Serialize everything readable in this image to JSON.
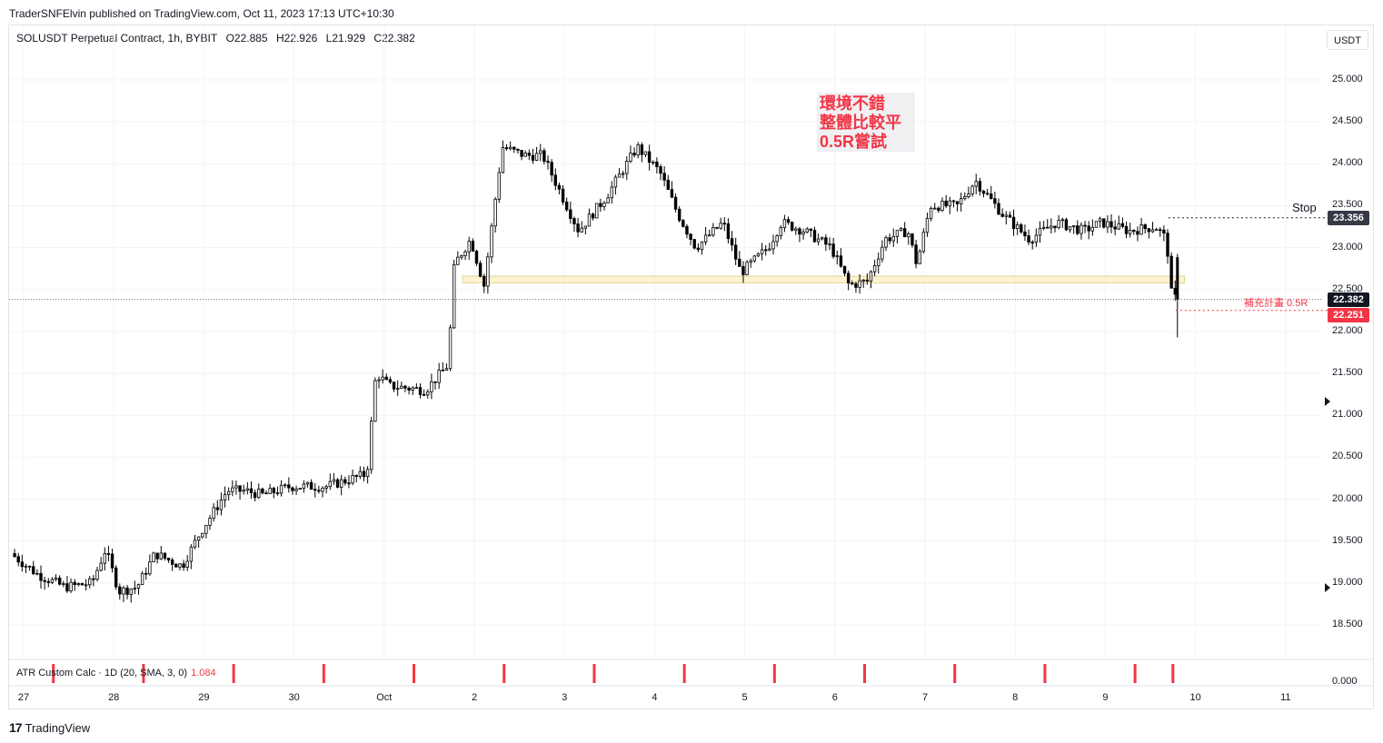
{
  "header": {
    "published": "TraderSNFElvin published on TradingView.com, Oct 11, 2023 17:13 UTC+10:30"
  },
  "symbol": {
    "name": "SOLUSDT Perpetual Contract, 1h, BYBIT",
    "open": "O22.885",
    "high": "H22.926",
    "low": "L21.929",
    "close": "C22.382"
  },
  "currency_button": "USDT",
  "annotation": {
    "lines": [
      "環境不錯",
      "整體比較平",
      "0.5R嘗試"
    ],
    "color": "#f23645"
  },
  "levels": {
    "stop_label": "Stop",
    "stop_price": "23.356",
    "close_price": "22.382",
    "plan_label": "補充計畫 0.5R",
    "plan_price": "22.251"
  },
  "indicator": {
    "label": "ATR Custom Calc · 1D (20, SMA, 3, 0)",
    "value": "1.084",
    "axis_value": "0.000"
  },
  "footer": {
    "brand": "TradingView"
  },
  "colors": {
    "up": "#ffffff",
    "down": "#000000",
    "accent_red": "#f23645",
    "zone": "#fdf3cf"
  },
  "chart_data": {
    "type": "candlestick",
    "title": "SOLUSDT Perpetual Contract, 1h, BYBIT",
    "ylim": [
      18.2,
      25.4
    ],
    "y_ticks": [
      "25.000",
      "24.500",
      "24.000",
      "23.500",
      "23.000",
      "22.500",
      "22.000",
      "21.500",
      "21.000",
      "20.500",
      "20.000",
      "19.500",
      "19.000",
      "18.500"
    ],
    "x_ticks": [
      "27",
      "28",
      "29",
      "30",
      "Oct",
      "2",
      "3",
      "4",
      "5",
      "6",
      "7",
      "8",
      "9",
      "10",
      "11"
    ],
    "anchors": [
      {
        "day": 26.9,
        "price": 19.35
      },
      {
        "day": 27.2,
        "price": 19.1
      },
      {
        "day": 27.5,
        "price": 18.95
      },
      {
        "day": 27.8,
        "price": 19.0
      },
      {
        "day": 27.95,
        "price": 19.4
      },
      {
        "day": 28.1,
        "price": 18.9
      },
      {
        "day": 28.3,
        "price": 18.95
      },
      {
        "day": 28.5,
        "price": 19.35
      },
      {
        "day": 28.8,
        "price": 19.2
      },
      {
        "day": 29.0,
        "price": 19.6
      },
      {
        "day": 29.3,
        "price": 20.1
      },
      {
        "day": 29.5,
        "price": 20.1
      },
      {
        "day": 29.7,
        "price": 20.05
      },
      {
        "day": 30.0,
        "price": 20.15
      },
      {
        "day": 30.4,
        "price": 20.15
      },
      {
        "day": 30.85,
        "price": 20.3
      },
      {
        "day": 30.95,
        "price": 21.5
      },
      {
        "day": 31.1,
        "price": 21.35
      },
      {
        "day": 31.5,
        "price": 21.3
      },
      {
        "day": 31.75,
        "price": 21.6
      },
      {
        "day": 31.82,
        "price": 22.8
      },
      {
        "day": 32.0,
        "price": 23.1
      },
      {
        "day": 32.15,
        "price": 22.55
      },
      {
        "day": 32.35,
        "price": 24.2
      },
      {
        "day": 32.6,
        "price": 24.1
      },
      {
        "day": 32.8,
        "price": 24.1
      },
      {
        "day": 33.2,
        "price": 23.2
      },
      {
        "day": 33.5,
        "price": 23.6
      },
      {
        "day": 33.85,
        "price": 24.2
      },
      {
        "day": 34.1,
        "price": 23.9
      },
      {
        "day": 34.3,
        "price": 23.4
      },
      {
        "day": 34.5,
        "price": 23.0
      },
      {
        "day": 34.8,
        "price": 23.3
      },
      {
        "day": 35.0,
        "price": 22.7
      },
      {
        "day": 35.3,
        "price": 23.0
      },
      {
        "day": 35.45,
        "price": 23.3
      },
      {
        "day": 35.7,
        "price": 23.2
      },
      {
        "day": 36.0,
        "price": 23.0
      },
      {
        "day": 36.2,
        "price": 22.55
      },
      {
        "day": 36.4,
        "price": 22.6
      },
      {
        "day": 36.6,
        "price": 23.1
      },
      {
        "day": 36.85,
        "price": 23.2
      },
      {
        "day": 36.95,
        "price": 22.8
      },
      {
        "day": 37.1,
        "price": 23.5
      },
      {
        "day": 37.4,
        "price": 23.5
      },
      {
        "day": 37.6,
        "price": 23.8
      },
      {
        "day": 37.9,
        "price": 23.4
      },
      {
        "day": 38.2,
        "price": 23.1
      },
      {
        "day": 38.5,
        "price": 23.3
      },
      {
        "day": 38.8,
        "price": 23.2
      },
      {
        "day": 39.0,
        "price": 23.3
      },
      {
        "day": 39.3,
        "price": 23.2
      },
      {
        "day": 39.6,
        "price": 23.25
      },
      {
        "day": 39.72,
        "price": 23.1
      },
      {
        "day": 39.78,
        "price": 22.4
      }
    ],
    "last_candle": {
      "open": 22.885,
      "high": 22.926,
      "low": 21.929,
      "close": 22.382
    },
    "highlighted_zone": [
      22.58,
      22.66
    ],
    "stop_level": 23.356,
    "plan_level": 22.251,
    "atr_marker_days": [
      27.33,
      28.33,
      29.33,
      30.33,
      31.33,
      32.33,
      33.33,
      34.33,
      35.33,
      36.33,
      37.33,
      38.33,
      39.33,
      39.75
    ]
  }
}
